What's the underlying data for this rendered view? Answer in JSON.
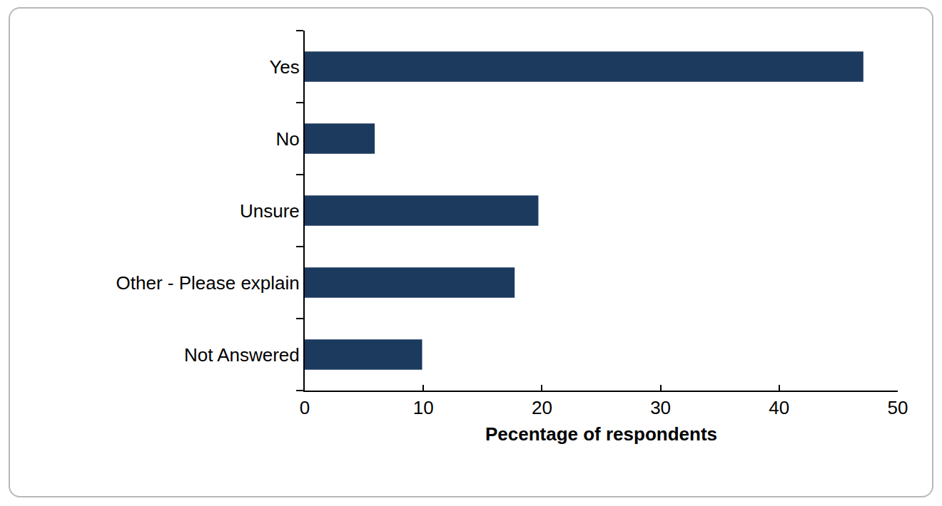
{
  "chart_data": {
    "type": "bar",
    "orientation": "horizontal",
    "categories": [
      "Yes",
      "No",
      "Unsure",
      "Other - Please explain",
      "Not Answered"
    ],
    "values": [
      47.1,
      5.9,
      19.7,
      17.7,
      9.9
    ],
    "color": "#1c3a5e",
    "x_label": "Pecentage of respondents",
    "xlim": [
      0,
      50
    ],
    "xticks": [
      0,
      10,
      20,
      30,
      40,
      50
    ],
    "grid": false
  }
}
